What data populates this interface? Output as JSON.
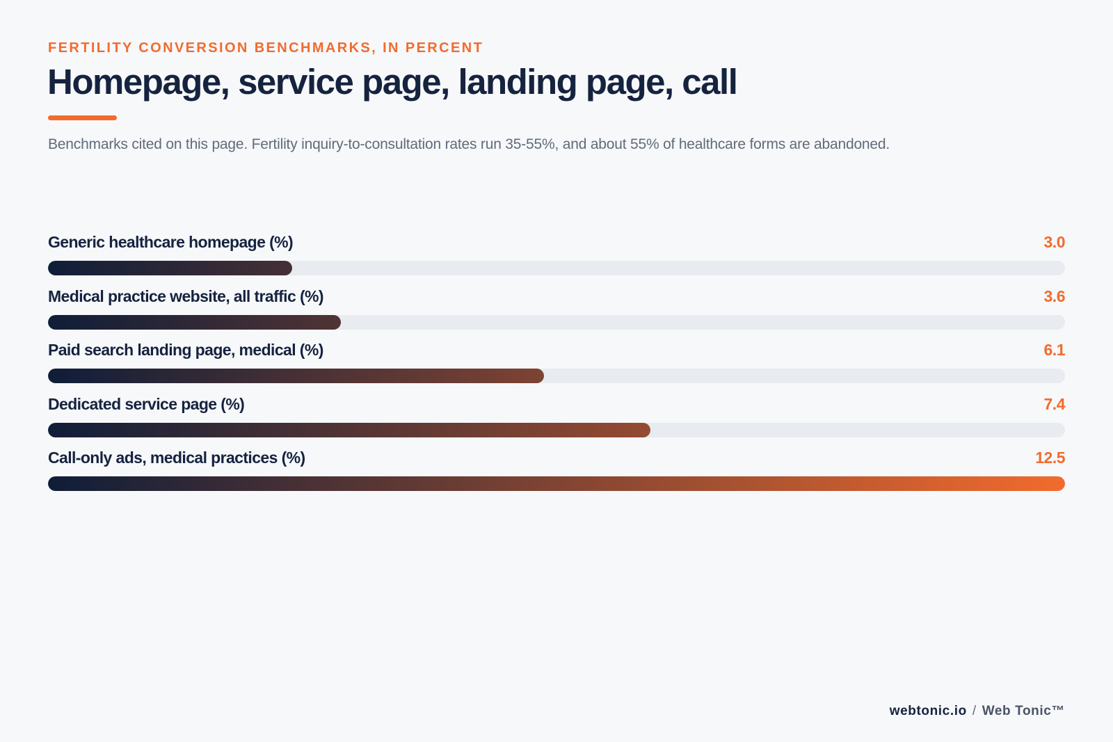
{
  "header": {
    "eyebrow": "FERTILITY CONVERSION BENCHMARKS, IN PERCENT",
    "title": "Homepage, service page, landing page, call",
    "subtitle": "Benchmarks cited on this page. Fertility inquiry-to-consultation rates run 35-55%, and about 55% of healthcare forms are abandoned."
  },
  "chart_data": {
    "type": "bar",
    "orientation": "horizontal",
    "categories": [
      "Generic healthcare homepage (%)",
      "Medical practice website, all traffic (%)",
      "Paid search landing page, medical (%)",
      "Dedicated service page (%)",
      "Call-only ads, medical practices (%)"
    ],
    "values": [
      3.0,
      3.6,
      6.1,
      7.4,
      12.5
    ],
    "value_labels": [
      "3.0",
      "3.6",
      "6.1",
      "7.4",
      "12.5"
    ],
    "xlim": [
      0,
      12.5
    ],
    "grid": false,
    "colors": {
      "bar_start": "#0f1d38",
      "bar_end": "#f26b2d",
      "track": "#e8ebef",
      "accent": "#f26b2d"
    }
  },
  "footer": {
    "site": "webtonic.io",
    "separator": "/",
    "brand": "Web Tonic™"
  }
}
